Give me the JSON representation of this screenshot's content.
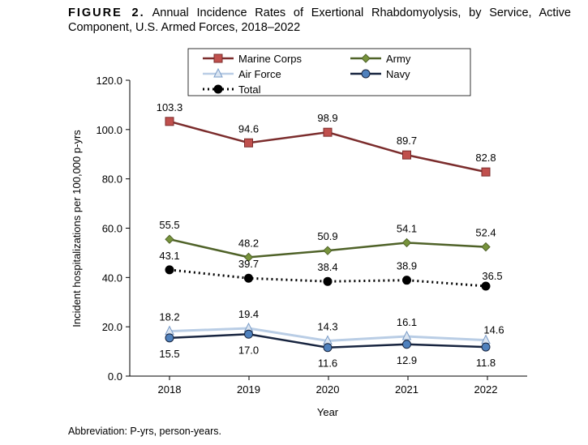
{
  "title_prefix": "FIGURE 2.",
  "title": "Annual Incidence Rates of Exertional Rhabdomyolysis, by Service, Active Component, U.S. Armed Forces, 2018–2022",
  "footnote": "Abbreviation: P-yrs, person-years.",
  "chart_data": {
    "type": "line",
    "xlabel": "Year",
    "ylabel": "Incident hospitalizations per 100,000 p-yrs",
    "categories": [
      "2018",
      "2019",
      "2020",
      "2021",
      "2022"
    ],
    "ylim": [
      0,
      120
    ],
    "yticks": [
      "0.0",
      "20.0",
      "40.0",
      "60.0",
      "80.0",
      "100.0",
      "120.0"
    ],
    "grid": false,
    "legend_position": "top",
    "series": [
      {
        "name": "Marine Corps",
        "values": [
          103.3,
          94.6,
          98.9,
          89.7,
          82.8
        ],
        "labels": [
          "103.3",
          "94.6",
          "98.9",
          "89.7",
          "82.8"
        ],
        "line_color": "#7b2c2c",
        "marker_color": "#c0504d",
        "marker": "square",
        "dash": false,
        "label_pos": "above"
      },
      {
        "name": "Army",
        "values": [
          55.5,
          48.2,
          50.9,
          54.1,
          52.4
        ],
        "labels": [
          "55.5",
          "48.2",
          "50.9",
          "54.1",
          "52.4"
        ],
        "line_color": "#4f6228",
        "marker_color": "#77933c",
        "marker": "diamond",
        "dash": false,
        "label_pos": "above"
      },
      {
        "name": "Air Force",
        "values": [
          18.2,
          19.4,
          14.3,
          16.1,
          14.6
        ],
        "labels": [
          "18.2",
          "19.4",
          "14.3",
          "16.1",
          "14.6"
        ],
        "line_color": "#b9cde5",
        "marker_color": "#dbe5f1",
        "marker": "triangle",
        "dash": false,
        "label_pos": "above"
      },
      {
        "name": "Navy",
        "values": [
          15.5,
          17.0,
          11.6,
          12.9,
          11.8
        ],
        "labels": [
          "15.5",
          "17.0",
          "11.6",
          "12.9",
          "11.8"
        ],
        "line_color": "#17243f",
        "marker_color": "#4f81bd",
        "marker": "circle",
        "dash": false,
        "label_pos": "below"
      },
      {
        "name": "Total",
        "values": [
          43.1,
          39.7,
          38.4,
          38.9,
          36.5
        ],
        "labels": [
          "43.1",
          "39.7",
          "38.4",
          "38.9",
          "36.5"
        ],
        "line_color": "#000000",
        "marker_color": "#000000",
        "marker": "circle",
        "dash": true,
        "label_pos": "above"
      }
    ]
  }
}
